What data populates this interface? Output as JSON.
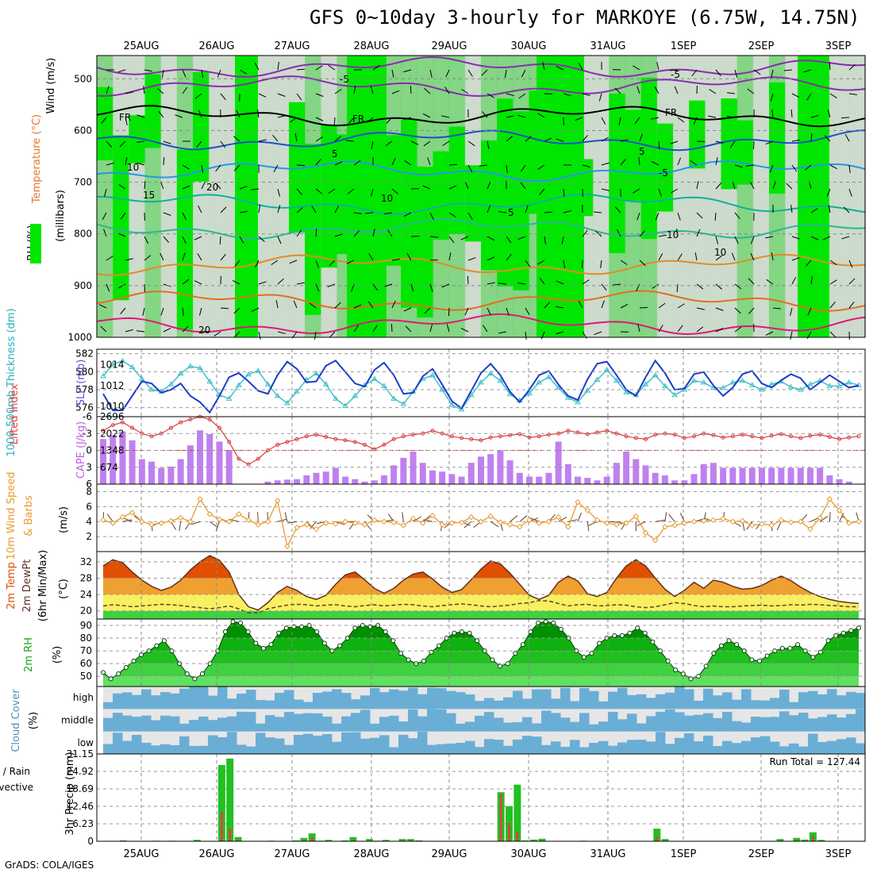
{
  "title": "GFS 0~10day 3-hourly for MARKOYE (6.75W, 14.75N)",
  "footer": "GrADS: COLA/IGES",
  "colors": {
    "rh_light": "#c8d8c8",
    "rh_mid": "#78d278",
    "rh_high": "#00e600",
    "thickness": "#40c0c8",
    "slp": "#1e3cc8",
    "lifted_index": "#dc3c3c",
    "cape": "#c080f0",
    "wind10m": "#e89a30",
    "barb": "#604020",
    "temp_hot": "#e05000",
    "temp_mid": "#f0a030",
    "temp_low": "#f8f060",
    "rh2m": "#00b000",
    "cloud": "#6aaed6",
    "cloud_clear": "#e6e6e6",
    "rain_total": "#22c022",
    "rain_conv": "#e04040"
  },
  "date_labels": [
    "25AUG",
    "26AUG",
    "27AUG",
    "28AUG",
    "29AUG",
    "30AUG",
    "31AUG",
    "1SEP",
    "2SEP",
    "3SEP"
  ],
  "panels": {
    "upper": {
      "labels": [
        "Wind (m/s)",
        "Temperature (°C)",
        "RH (%)",
        "(millibars)"
      ],
      "yticks": [
        "500",
        "600",
        "700",
        "800",
        "900",
        "1000"
      ],
      "contour_labels": [
        "-5",
        "FR",
        "FR",
        "FR",
        "-5",
        "5",
        "5",
        "-5",
        "10",
        "10",
        "15",
        "10",
        "20",
        "10",
        "20",
        "5"
      ]
    },
    "slp": {
      "labels": [
        "1000-500mb Thickness (dm)",
        "SLP (mb)"
      ],
      "left_ticks": [
        "582",
        "580",
        "578",
        "576"
      ],
      "right_ticks": [
        "1014",
        "1012",
        "1010"
      ]
    },
    "cape": {
      "labels": [
        "Lifted Index",
        "CAPE (J/kg)"
      ],
      "left_ticks": [
        "-6",
        "-3",
        "0",
        "3",
        "6"
      ],
      "right_ticks": [
        "2696",
        "2022",
        "1348",
        "674"
      ]
    },
    "wind10m": {
      "labels": [
        "10m Wind Speed",
        "& Barbs",
        "(m/s)"
      ],
      "yticks": [
        "8",
        "6",
        "4",
        "2"
      ]
    },
    "temp": {
      "labels": [
        "2m Temp",
        "2m DewPt",
        "(6hr Min/Max)",
        "(°C)"
      ],
      "yticks": [
        "32",
        "28",
        "24",
        "20"
      ]
    },
    "rh2m": {
      "labels": [
        "2m RH",
        "(%)"
      ],
      "yticks": [
        "90",
        "80",
        "70",
        "60",
        "50"
      ]
    },
    "cloud": {
      "labels": [
        "Cloud Cover",
        "(%)"
      ],
      "levels": [
        "high",
        "middle",
        "low"
      ]
    },
    "precip": {
      "labels": [
        "Total / Rain",
        "Convective",
        "3hr Precip (mm)"
      ],
      "yticks": [
        "31.15",
        "24.92",
        "18.69",
        "12.46",
        "6.23",
        "0"
      ],
      "run_total": "Run Total = 127.44"
    }
  },
  "chart_data": [
    {
      "type": "line",
      "title": "1000-500mb Thickness (dm) / SLP (mb)",
      "x_unit": "3-hourly steps from 25AUG 00Z",
      "series": [
        {
          "name": "SLP (mb)",
          "values": [
            1011.2,
            1009.6,
            1009.6,
            1011.0,
            1012.4,
            1012.2,
            1011.3,
            1011.6,
            1012.2,
            1011.0,
            1010.4,
            1009.4,
            1011.0,
            1012.8,
            1013.2,
            1012.4,
            1011.5,
            1011.2,
            1013.0,
            1014.3,
            1013.6,
            1012.3,
            1012.4,
            1013.9,
            1014.4,
            1013.3,
            1012.2,
            1011.9,
            1013.5,
            1014.2,
            1013.0,
            1011.2,
            1011.3,
            1012.9,
            1013.6,
            1012.1,
            1010.5,
            1009.8,
            1011.5,
            1013.2,
            1014.1,
            1013.0,
            1011.4,
            1010.4,
            1011.6,
            1013.0,
            1013.4,
            1012.1,
            1011.0,
            1010.6,
            1012.6,
            1014.1,
            1014.3,
            1013.0,
            1011.6,
            1011.0,
            1012.8,
            1014.4,
            1013.2,
            1011.6,
            1011.7,
            1013.1,
            1013.3,
            1012.0,
            1011.0,
            1011.8,
            1013.1,
            1013.4,
            1012.2,
            1011.8,
            1012.5,
            1013.1,
            1012.7,
            1011.6,
            1012.3,
            1013.0,
            1012.4,
            1011.8,
            1012.0
          ]
        },
        {
          "name": "1000-500mb Thickness (dm)",
          "values": [
            579.5,
            580.8,
            581.2,
            580.5,
            579.2,
            578.0,
            577.8,
            578.6,
            579.8,
            580.6,
            580.4,
            578.9,
            577.4,
            577.0,
            578.5,
            579.7,
            580.1,
            578.6,
            577.3,
            576.5,
            577.8,
            579.1,
            579.8,
            578.6,
            577.0,
            576.2,
            577.3,
            578.5,
            579.2,
            578.4,
            577.0,
            576.4,
            577.8,
            579.2,
            579.6,
            578.0,
            576.3,
            575.8,
            577.4,
            578.8,
            579.8,
            579.0,
            577.5,
            576.8,
            577.6,
            578.8,
            579.4,
            578.2,
            577.1,
            576.6,
            577.9,
            579.1,
            580.2,
            579.0,
            577.7,
            577.4,
            578.6,
            579.6,
            578.4,
            577.4,
            578.0,
            579.0,
            578.8,
            578.2,
            578.2,
            578.8,
            579.0,
            578.5,
            578.0,
            578.6,
            578.9,
            578.3,
            578.0,
            578.6,
            579.0,
            578.4,
            578.4,
            578.8,
            578.5
          ]
        }
      ]
    },
    {
      "type": "bar",
      "title": "Lifted Index / CAPE (J/kg)",
      "x_unit": "3-hourly steps from 25AUG 00Z",
      "series": [
        {
          "name": "CAPE (J/kg)",
          "values": [
            1800,
            1950,
            2100,
            1750,
            1000,
            900,
            650,
            700,
            1000,
            1550,
            2150,
            2000,
            1700,
            1350,
            0,
            0,
            0,
            100,
            150,
            180,
            200,
            350,
            450,
            500,
            650,
            300,
            200,
            100,
            150,
            350,
            750,
            1050,
            1300,
            850,
            550,
            500,
            400,
            300,
            850,
            1100,
            1200,
            1350,
            950,
            450,
            300,
            300,
            450,
            1700,
            800,
            300,
            250,
            150,
            300,
            850,
            1300,
            1000,
            750,
            450,
            350,
            150,
            150,
            400,
            800,
            850,
            650,
            650,
            650,
            650,
            650,
            650,
            650,
            650,
            650,
            650,
            650,
            350,
            200,
            100,
            0
          ]
        },
        {
          "name": "Lifted Index",
          "values": [
            -3.5,
            -4.5,
            -5.0,
            -4.0,
            -3.0,
            -2.5,
            -3.0,
            -4.0,
            -5.0,
            -5.5,
            -6.0,
            -5.5,
            -4.0,
            -1.5,
            1.5,
            2.5,
            1.5,
            0.0,
            -1.0,
            -1.5,
            -2.0,
            -2.5,
            -2.8,
            -2.4,
            -2.0,
            -1.8,
            -1.5,
            -1.0,
            -0.2,
            -1.0,
            -2.0,
            -2.5,
            -2.8,
            -3.0,
            -3.5,
            -3.0,
            -2.5,
            -2.2,
            -2.0,
            -1.8,
            -2.3,
            -2.5,
            -2.7,
            -2.9,
            -2.3,
            -2.5,
            -2.8,
            -3.0,
            -3.5,
            -3.2,
            -2.9,
            -3.2,
            -3.5,
            -3.0,
            -2.5,
            -2.2,
            -2.0,
            -2.8,
            -3.0,
            -2.8,
            -2.2,
            -2.5,
            -3.0,
            -2.7,
            -2.3,
            -2.5,
            -2.8,
            -2.5,
            -2.2,
            -2.6,
            -2.9,
            -2.5,
            -2.2,
            -2.6,
            -2.8,
            -2.4,
            -2.0,
            -2.3,
            -2.5
          ]
        }
      ]
    },
    {
      "type": "line",
      "title": "10m Wind Speed (m/s)",
      "x_unit": "3-hourly steps from 25AUG 00Z",
      "series": [
        {
          "name": "10m Wind Speed",
          "values": [
            4.2,
            3.8,
            4.6,
            5.2,
            4.0,
            3.6,
            3.8,
            4.1,
            4.5,
            4.0,
            7.0,
            5.0,
            4.3,
            4.0,
            5.0,
            4.2,
            3.6,
            4.0,
            6.8,
            0.7,
            3.2,
            3.6,
            3.0,
            3.8,
            3.7,
            4.0,
            3.8,
            3.6,
            4.2,
            4.0,
            3.9,
            3.5,
            4.4,
            3.8,
            4.8,
            3.6,
            3.8,
            3.9,
            4.6,
            4.0,
            4.7,
            3.9,
            3.6,
            3.3,
            4.2,
            3.8,
            4.0,
            4.6,
            3.3,
            6.6,
            5.5,
            4.2,
            3.8,
            3.6,
            3.8,
            4.7,
            2.5,
            1.5,
            3.3,
            3.5,
            3.8,
            4.0,
            4.1,
            4.2,
            4.4,
            4.0,
            4.1,
            3.5,
            3.7,
            3.5,
            4.2,
            3.9,
            4.0,
            3.0,
            4.5,
            7.0,
            5.5,
            3.8,
            4.0
          ]
        }
      ]
    },
    {
      "type": "area",
      "title": "2m Temp / 2m DewPt (°C)",
      "x_unit": "3-hourly steps from 25AUG 00Z",
      "series": [
        {
          "name": "2m Temp",
          "values": [
            31,
            32.5,
            31.8,
            29.5,
            27.5,
            26,
            25,
            25.8,
            27.5,
            30,
            32,
            33.5,
            32.4,
            29.5,
            24,
            21,
            20.2,
            22,
            24.5,
            26,
            25,
            23.5,
            22.8,
            23.8,
            26.5,
            28.8,
            29.5,
            27.6,
            25.5,
            24.3,
            25.5,
            27.5,
            29,
            29.5,
            27.8,
            25.8,
            24.5,
            25.2,
            27.6,
            30.2,
            32.2,
            31.5,
            29.2,
            26.5,
            23.8,
            22.8,
            23.8,
            27,
            28.5,
            27.3,
            24.2,
            23.5,
            24.5,
            28,
            31,
            32.5,
            31,
            28,
            25.3,
            23.5,
            25,
            27,
            25.5,
            27.5,
            27,
            26,
            25.3,
            25.5,
            26.2,
            27.5,
            28.5,
            27.4,
            25.8,
            24.5,
            23.5,
            22.8,
            22.3,
            22.0,
            21.8
          ]
        },
        {
          "name": "2m DewPt",
          "values": [
            21.2,
            21.5,
            21.3,
            21.0,
            21.2,
            21.4,
            21.6,
            21.5,
            21.3,
            21.0,
            20.8,
            20.5,
            20.8,
            21.2,
            20.5,
            19.5,
            19.5,
            20.5,
            21.0,
            21.4,
            21.6,
            21.5,
            21.2,
            21.4,
            21.5,
            21.2,
            21.0,
            21.3,
            21.5,
            21.2,
            21.4,
            21.6,
            21.5,
            21.2,
            21.0,
            21.3,
            21.5,
            21.7,
            21.5,
            21.2,
            21.0,
            21.2,
            21.4,
            21.8,
            22.0,
            22.5,
            22.4,
            21.8,
            21.2,
            21.5,
            21.6,
            21.2,
            21.3,
            21.5,
            21.4,
            21.0,
            20.8,
            21.0,
            21.5,
            22.0,
            21.8,
            21.3,
            21.0,
            21.2,
            21.0,
            21.0,
            21.2,
            21.3,
            21.4,
            21.2,
            21.3,
            21.5,
            21.4,
            21.6,
            21.5,
            21.3,
            21.2,
            21.0,
            21.0
          ]
        }
      ]
    },
    {
      "type": "area",
      "title": "2m RH (%)",
      "x_unit": "3-hourly steps from 25AUG 00Z",
      "series": [
        {
          "name": "2m RH",
          "values": [
            53,
            48,
            52,
            57,
            62,
            67,
            70,
            74,
            78,
            70,
            60,
            52,
            48,
            52,
            60,
            70,
            85,
            93,
            92,
            85,
            76,
            72,
            75,
            84,
            88,
            89,
            89,
            90,
            85,
            76,
            70,
            74,
            80,
            88,
            90,
            89,
            90,
            85,
            78,
            68,
            63,
            60,
            62,
            69,
            74,
            80,
            84,
            85,
            84,
            78,
            70,
            63,
            58,
            60,
            68,
            75,
            85,
            92,
            93,
            92,
            87,
            80,
            70,
            65,
            68,
            76,
            80,
            82,
            82,
            84,
            88,
            84,
            77,
            70,
            62,
            55,
            52,
            48,
            50,
            58,
            68,
            74,
            78,
            75,
            70,
            63,
            62,
            66,
            70,
            72,
            72,
            75,
            70,
            65,
            69,
            78,
            82,
            84,
            86,
            88
          ]
        }
      ]
    },
    {
      "type": "bar",
      "title": "3hr Precip (mm)",
      "x_unit": "3-hourly steps from 25AUG 00Z",
      "series": [
        {
          "name": "Total / Rain",
          "values": [
            0,
            0,
            0.3,
            0,
            0,
            0,
            0.2,
            0,
            0.2,
            0,
            0,
            0.5,
            0,
            0.1,
            27.2,
            29.5,
            1.5,
            0,
            0,
            0,
            0.2,
            0,
            0,
            0.3,
            1.2,
            2.8,
            0.2,
            0.5,
            0,
            0.3,
            1.5,
            0.1,
            0.8,
            0.2,
            0.5,
            0.1,
            0.8,
            0.8,
            0.3,
            0,
            0,
            0,
            0,
            0,
            0,
            0,
            0,
            0,
            17.5,
            12.5,
            20.2,
            0.3,
            0.6,
            0.9,
            0.1,
            0,
            0,
            0,
            0.2,
            0,
            0,
            0,
            0,
            0,
            0,
            0,
            0,
            4.5,
            0.8,
            0,
            0,
            0,
            0,
            0,
            0,
            0,
            0,
            0,
            0,
            0,
            0,
            0,
            0.8,
            0,
            1.2,
            0.6,
            3.2,
            0.5,
            0.1,
            0,
            0,
            0
          ]
        },
        {
          "name": "Convective",
          "values": [
            0,
            0,
            0.1,
            0,
            0,
            0,
            0.1,
            0,
            0.1,
            0,
            0,
            0.2,
            0,
            0,
            10.5,
            4.5,
            0.5,
            0,
            0,
            0,
            0.1,
            0,
            0,
            0.1,
            0.3,
            1.5,
            0.1,
            0.2,
            0,
            0.1,
            0.4,
            0,
            0.2,
            0.1,
            0.2,
            0,
            0.3,
            0.3,
            0.1,
            0,
            0,
            0,
            0,
            0,
            0,
            0,
            0,
            0,
            16.8,
            6.5,
            3.5,
            0.1,
            0.2,
            0.3,
            0,
            0,
            0,
            0,
            0.1,
            0,
            0,
            0,
            0,
            0,
            0,
            0,
            0,
            1.5,
            0.2,
            0,
            0,
            0,
            0,
            0,
            0,
            0,
            0,
            0,
            0,
            0,
            0,
            0,
            0.2,
            0,
            0.4,
            0.2,
            1.8,
            0.2,
            0,
            0,
            0,
            0
          ]
        }
      ]
    }
  ]
}
